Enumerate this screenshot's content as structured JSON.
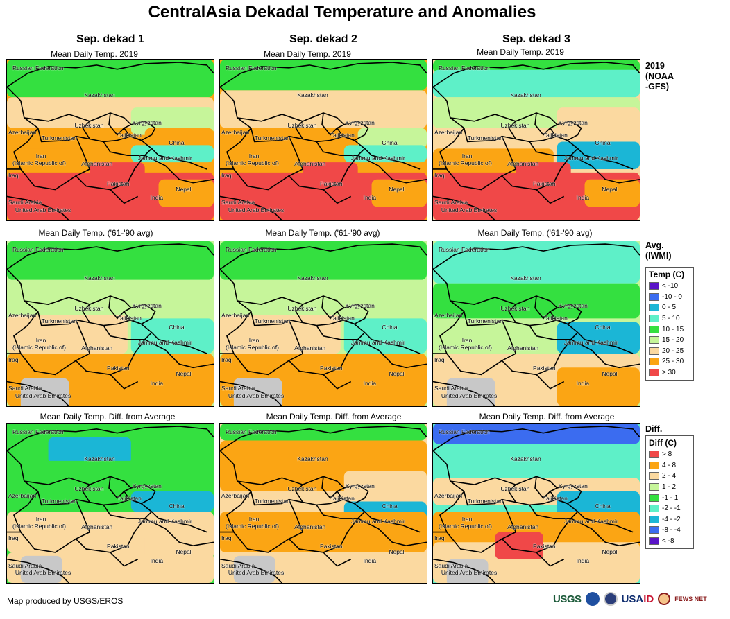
{
  "title": "CentralAsia Dekadal Temperature and Anomalies",
  "columns": [
    {
      "header": "Sep. dekad 1"
    },
    {
      "header": "Sep. dekad 2"
    },
    {
      "header": "Sep. dekad 3"
    }
  ],
  "rows": [
    {
      "subtitle": "Mean Daily Temp. 2019",
      "side_label": "2019 (NOAA -GFS)",
      "side_line1": "2019",
      "side_line2": "(NOAA",
      "side_line3": "-GFS)"
    },
    {
      "subtitle": "Mean Daily Temp. ('61-'90 avg)",
      "side_label": "Avg. (IWMI)",
      "side_line1": "Avg.",
      "side_line2": "(IWMI)",
      "side_line3": ""
    },
    {
      "subtitle": "Mean Daily Temp. Diff. from Average",
      "side_label": "Diff.",
      "side_line1": "Diff.",
      "side_line2": "",
      "side_line3": ""
    }
  ],
  "map_labels": {
    "russia": "Russian Federation",
    "kazakhstan": "Kazakhstan",
    "uzbekistan": "Uzbekistan",
    "kyrgyzstan": "Kyrgyzstan",
    "azerbaijan": "Azerbaijan",
    "turkmenistan": "Turkmenistan",
    "tajikistan": "Tajikistan",
    "china": "China",
    "iran1": "Iran",
    "iran2": "(Islamic Republic of)",
    "afghanistan": "Afghanistan",
    "jammu": "Jammu and Kashmir",
    "iraq": "Iraq",
    "pakistan": "Pakistan",
    "nepal": "Nepal",
    "india": "India",
    "saudi": "Saudi Arabia",
    "uae": "United Arab Emirates"
  },
  "temp_legend": {
    "title": "Temp (C)",
    "items": [
      {
        "label": "< -10",
        "color": "#5a14c8"
      },
      {
        "label": "-10 - 0",
        "color": "#3b6cf0"
      },
      {
        "label": "0 - 5",
        "color": "#1bb6d6"
      },
      {
        "label": "5 - 10",
        "color": "#5ef0c8"
      },
      {
        "label": "10 - 15",
        "color": "#34e040"
      },
      {
        "label": "15 - 20",
        "color": "#c6f59a"
      },
      {
        "label": "20 - 25",
        "color": "#fbd9a0"
      },
      {
        "label": "25 - 30",
        "color": "#fba514"
      },
      {
        "label": "> 30",
        "color": "#f04848"
      }
    ]
  },
  "diff_legend": {
    "title": "Diff (C)",
    "items": [
      {
        "label": "> 8",
        "color": "#f04848"
      },
      {
        "label": "4 - 8",
        "color": "#fba514"
      },
      {
        "label": "2 - 4",
        "color": "#fbd9a0"
      },
      {
        "label": "1 - 2",
        "color": "#c6f59a"
      },
      {
        "label": "-1 - 1",
        "color": "#34e040"
      },
      {
        "label": "-2 - -1",
        "color": "#5ef0c8"
      },
      {
        "label": "-4 - -2",
        "color": "#1bb6d6"
      },
      {
        "label": "-8 - -4",
        "color": "#3b6cf0"
      },
      {
        "label": "< -8",
        "color": "#5a14c8"
      }
    ]
  },
  "credit": "Map produced by USGS/EROS",
  "logos": {
    "usgs": "USGS",
    "usaid_a": "USA",
    "usaid_b": "ID",
    "fews": "FEWS NET"
  },
  "colors": {
    "sea": "#c8c8c8",
    "border": "#000000"
  }
}
